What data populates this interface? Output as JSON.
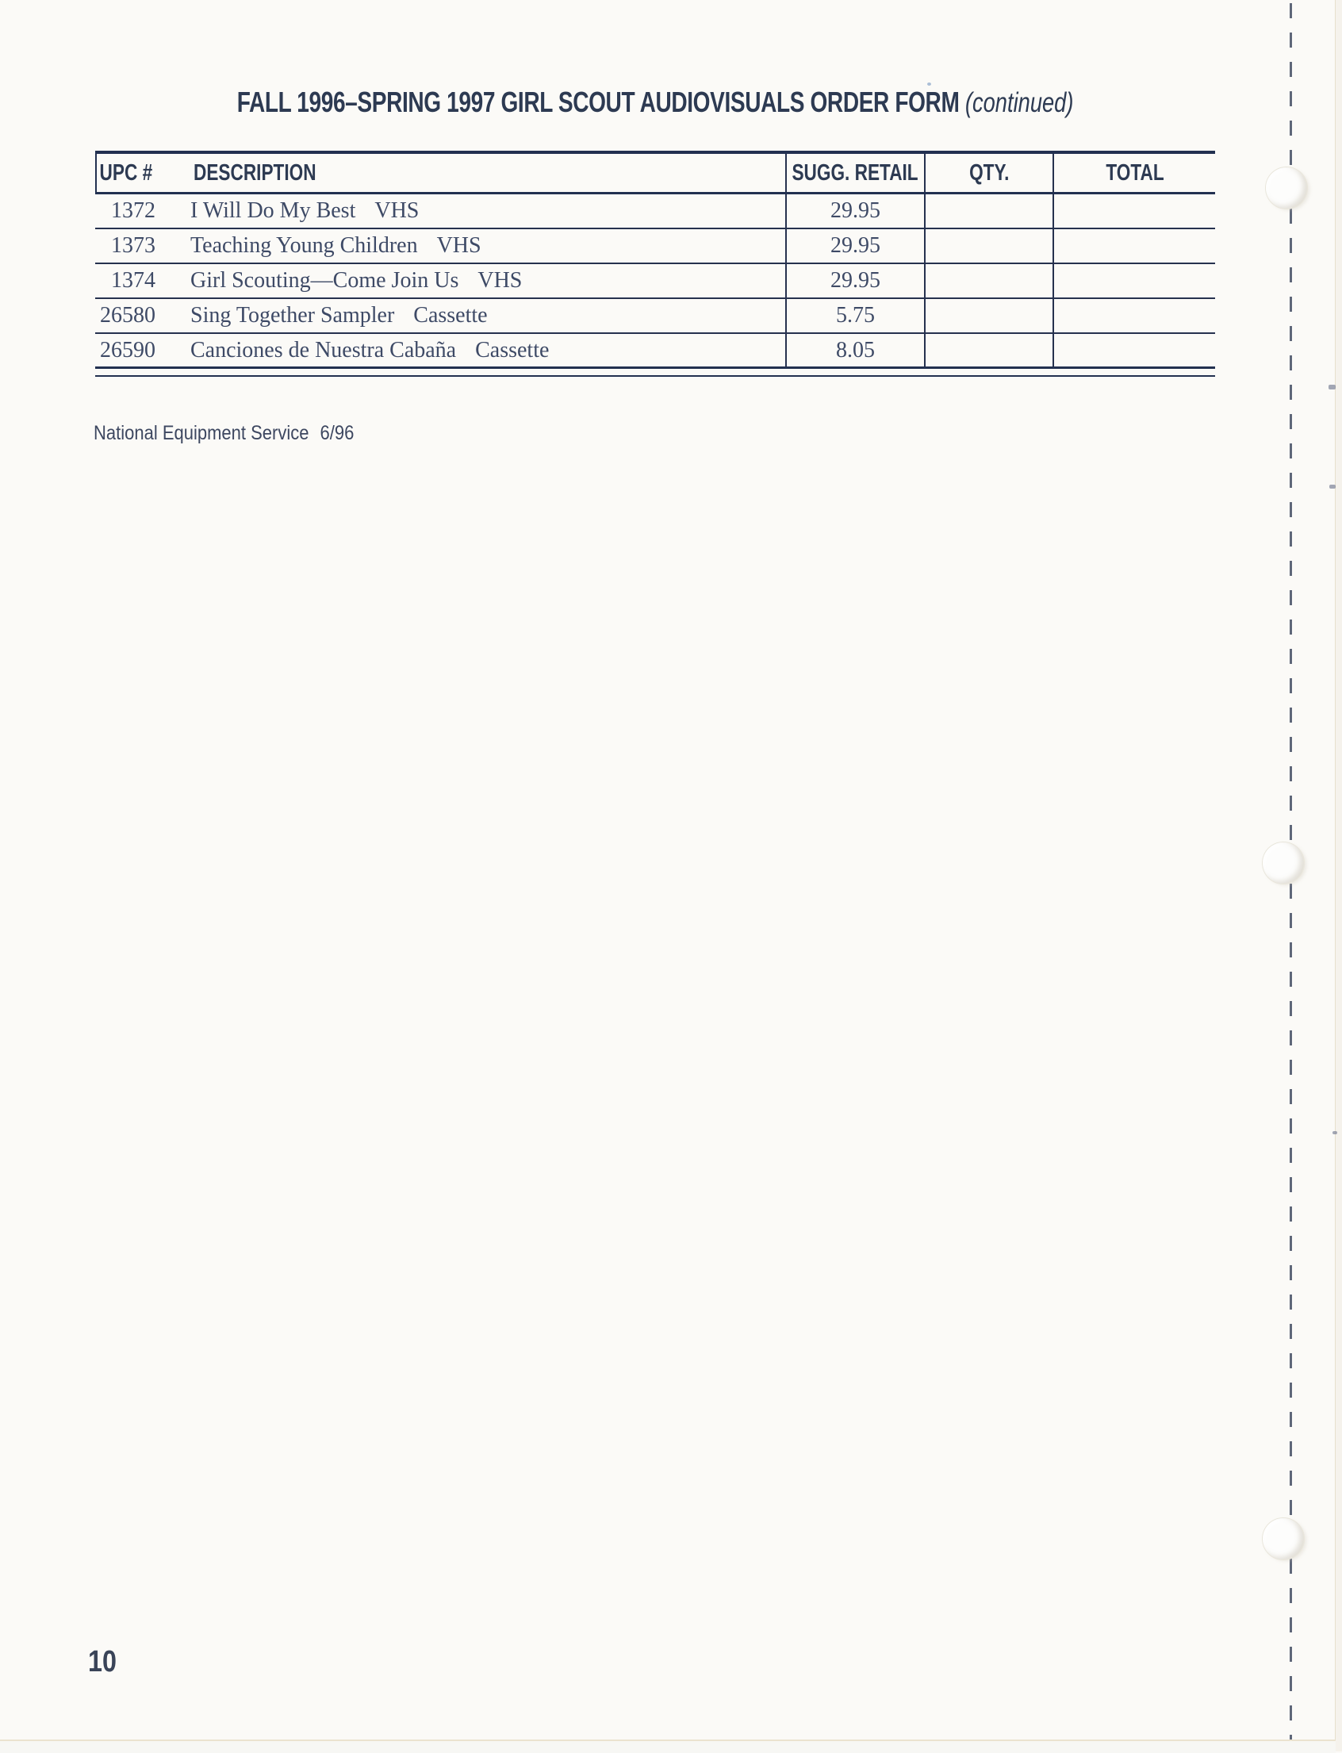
{
  "page": {
    "title": "FALL 1996–SPRING 1997 GIRL SCOUT AUDIOVISUALS ORDER FORM",
    "title_suffix": "(continued)",
    "footer_note": "National Equipment Service",
    "footer_date": "6/96",
    "page_number": "10"
  },
  "table": {
    "columns": [
      "UPC #",
      "DESCRIPTION",
      "SUGG. RETAIL",
      "QTY.",
      "TOTAL"
    ],
    "rows": [
      {
        "upc": "1372",
        "description": "I Will Do My Best",
        "format": "VHS",
        "sugg_retail": "29.95",
        "qty": "",
        "total": ""
      },
      {
        "upc": "1373",
        "description": "Teaching Young Children",
        "format": "VHS",
        "sugg_retail": "29.95",
        "qty": "",
        "total": ""
      },
      {
        "upc": "1374",
        "description": "Girl Scouting—Come Join Us",
        "format": "VHS",
        "sugg_retail": "29.95",
        "qty": "",
        "total": ""
      },
      {
        "upc": "26580",
        "description": "Sing Together Sampler",
        "format": "Cassette",
        "sugg_retail": "5.75",
        "qty": "",
        "total": ""
      },
      {
        "upc": "26590",
        "description": "Canciones de Nuestra Cabaña",
        "format": "Cassette",
        "sugg_retail": "8.05",
        "qty": "",
        "total": ""
      }
    ]
  },
  "colors": {
    "ink": "#2d3a52",
    "table_line": "#223050",
    "paper": "#fbfaf7"
  }
}
